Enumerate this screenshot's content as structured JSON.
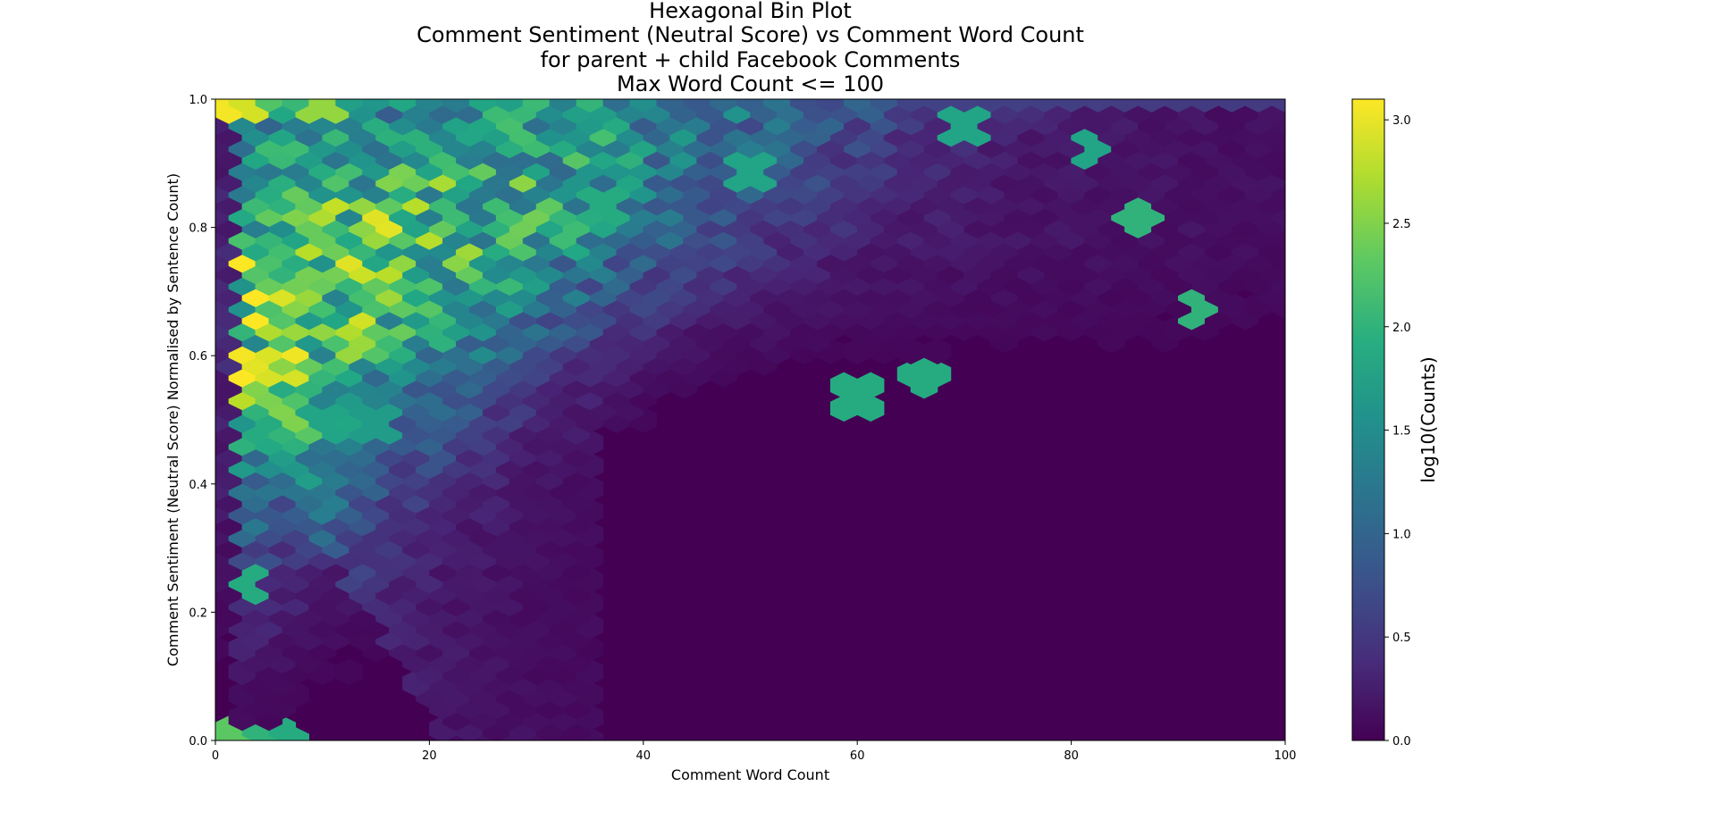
{
  "chart_data": {
    "type": "heatmap",
    "subtype": "hexbin",
    "title_lines": [
      "Hexagonal Bin Plot",
      "Comment Sentiment (Neutral Score) vs Comment Word Count",
      "for parent + child Facebook Comments",
      "Max Word Count <= 100"
    ],
    "xlabel": "Comment Word Count",
    "ylabel": "Comment Sentiment (Neutral Score) Normalised by Sentence Count)",
    "xlim": [
      0,
      100
    ],
    "ylim": [
      0,
      1.0
    ],
    "x_ticks": [
      "0",
      "20",
      "40",
      "60",
      "80",
      "100"
    ],
    "y_ticks": [
      "0.0",
      "0.2",
      "0.4",
      "0.6",
      "0.8",
      "1.0"
    ],
    "colorbar": {
      "label": "log10(Counts)",
      "range": [
        0,
        3.1
      ],
      "ticks": [
        "0.0",
        "0.5",
        "1.0",
        "1.5",
        "2.0",
        "2.5",
        "3.0"
      ],
      "colormap": "viridis"
    },
    "grid": false,
    "hex_grid": {
      "x_bins": 40,
      "y_bins": 28
    },
    "density_peaks": [
      {
        "x": 0,
        "y": 1.0,
        "log10_count": 3.05
      },
      {
        "x": 3,
        "y": 1.0,
        "log10_count": 2.9
      },
      {
        "x": 10,
        "y": 1.0,
        "log10_count": 2.6
      },
      {
        "x": 1,
        "y": 0.0,
        "log10_count": 2.3
      },
      {
        "x": 4,
        "y": 0.0,
        "log10_count": 2.0
      },
      {
        "x": 6,
        "y": 0.0,
        "log10_count": 1.9
      },
      {
        "x": 5,
        "y": 0.5,
        "log10_count": 1.9
      },
      {
        "x": 10,
        "y": 0.5,
        "log10_count": 1.8
      },
      {
        "x": 15,
        "y": 0.5,
        "log10_count": 1.7
      },
      {
        "x": 36,
        "y": 0.84,
        "log10_count": 1.9
      },
      {
        "x": 50,
        "y": 0.89,
        "log10_count": 1.8
      },
      {
        "x": 86,
        "y": 0.82,
        "log10_count": 2.0
      },
      {
        "x": 92,
        "y": 0.68,
        "log10_count": 2.0
      },
      {
        "x": 66,
        "y": 0.57,
        "log10_count": 1.9
      },
      {
        "x": 60,
        "y": 0.54,
        "log10_count": 1.9
      },
      {
        "x": 70,
        "y": 0.96,
        "log10_count": 1.8
      },
      {
        "x": 82,
        "y": 0.93,
        "log10_count": 1.8
      },
      {
        "x": 3,
        "y": 0.25,
        "log10_count": 1.9
      }
    ]
  }
}
